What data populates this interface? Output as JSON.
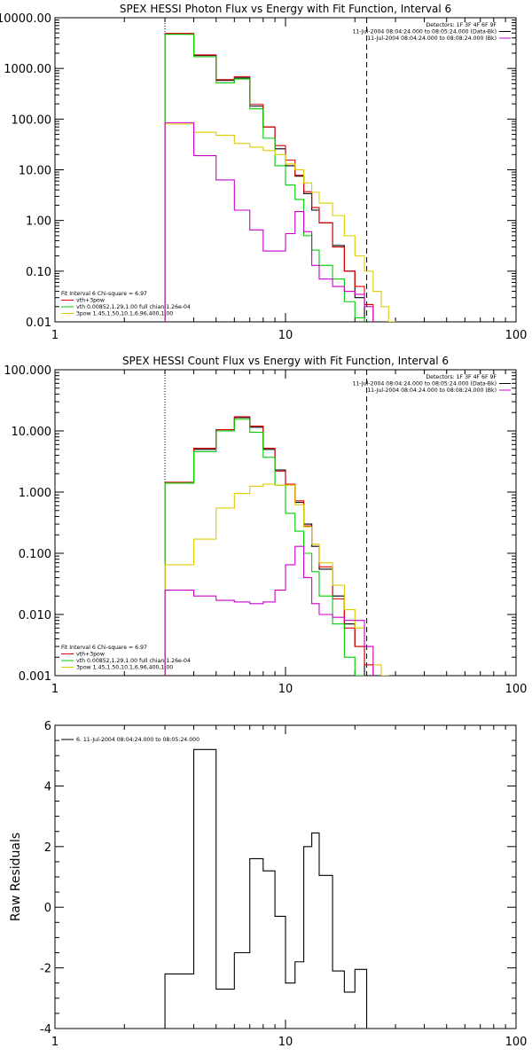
{
  "chart_data": [
    {
      "type": "line",
      "title": "SPEX HESSI Photon Flux vs Energy with Fit Function, Interval 6",
      "xscale": "log",
      "yscale": "log",
      "xlim": [
        1,
        100
      ],
      "ylim": [
        0.01,
        10000
      ],
      "xticks": [
        1,
        10,
        100
      ],
      "xtick_labels": [
        "1",
        "10",
        "100"
      ],
      "yticks": [
        0.01,
        0.1,
        1,
        10,
        100,
        1000,
        10000
      ],
      "ytick_labels": [
        "0.01",
        "0.10",
        "1.00",
        "10.00",
        "100.00",
        "1000.00",
        "10000.00"
      ],
      "header_lines": [
        "Detectors: 1F 3F 4F 6F 9F",
        "11-Jul-2004 08:04:24.000 to 08:05:24.000 (Data-Bk)",
        "11-Jul-2004 08:04:24.000 to 08:08:24.000 (Bk)"
      ],
      "header_colors": [
        "",
        "#000000",
        "#cc00cc"
      ],
      "legend_title": "Fit Interval 6   Chi-square = 6.97",
      "fit_range": [
        3,
        22.5
      ],
      "edges": [
        3,
        4,
        5,
        6,
        7,
        8,
        9,
        10,
        11,
        12,
        13,
        14,
        16,
        18,
        20,
        22,
        24,
        26,
        28,
        30
      ],
      "series": [
        {
          "name": "Data-Bk",
          "color": "#000000",
          "values": [
            4800,
            1800,
            580,
            650,
            180,
            70,
            26,
            12,
            7.5,
            3.4,
            1.6,
            0.9,
            0.32,
            0.1,
            0.03
          ]
        },
        {
          "name": "vth+3pow",
          "color": "#dd0000",
          "values": [
            4900,
            1850,
            600,
            690,
            195,
            70,
            30,
            15.5,
            7.8,
            3.7,
            1.8,
            0.9,
            0.3,
            0.1,
            0.05,
            0.022
          ]
        },
        {
          "name": "vth 0.00852,1.29,1.00  full chian 1.26e-04",
          "color": "#00cc00",
          "values": [
            4700,
            1700,
            520,
            620,
            160,
            42,
            12,
            5,
            2.6,
            0.5,
            0.26,
            0.13,
            0.07,
            0.025,
            0.012
          ]
        },
        {
          "name": "3pow 1.45,1.50,10.1,6.96,400,1.00",
          "color": "#ddcc00",
          "values": [
            80,
            55,
            48,
            33,
            28,
            24,
            20,
            13,
            10,
            5.5,
            3.6,
            2.2,
            1.25,
            0.5,
            0.2,
            0.1,
            0.04,
            0.02,
            0.01
          ]
        },
        {
          "name": "Bk",
          "color": "#cc00cc",
          "values": [
            85,
            19,
            6.3,
            1.6,
            0.65,
            0.25,
            0.25,
            0.55,
            1.5,
            0.6,
            0.13,
            0.07,
            0.05,
            0.04,
            0.035,
            0.02
          ]
        }
      ]
    },
    {
      "type": "line",
      "title": "SPEX HESSI Count Flux vs Energy with Fit Function, Interval 6",
      "xscale": "log",
      "yscale": "log",
      "xlim": [
        1,
        100
      ],
      "ylim": [
        0.001,
        100
      ],
      "xticks": [
        1,
        10,
        100
      ],
      "xtick_labels": [
        "1",
        "10",
        "100"
      ],
      "yticks": [
        0.001,
        0.01,
        0.1,
        1,
        10,
        100
      ],
      "ytick_labels": [
        "0.001",
        "0.010",
        "0.100",
        "1.000",
        "10.000",
        "100.000"
      ],
      "header_lines": [
        "Detectors: 1F 3F 4F 6F 9F",
        "11-Jul-2004 08:04:24.000 to 08:05:24.000 (Data-Bk)",
        "11-Jul-2004 08:04:24.000 to 08:08:24.000 (Bk)"
      ],
      "header_colors": [
        "",
        "#000000",
        "#cc00cc"
      ],
      "legend_title": "Fit Interval 6   Chi-square = 6.97",
      "fit_range": [
        3,
        22.5
      ],
      "edges": [
        3,
        4,
        5,
        6,
        7,
        8,
        9,
        10,
        11,
        12,
        13,
        14,
        16,
        18,
        20,
        22,
        24,
        26,
        28,
        30
      ],
      "series": [
        {
          "name": "Data-Bk",
          "color": "#000000",
          "values": [
            1.4,
            5.0,
            10.5,
            16.5,
            11.5,
            5.0,
            2.3,
            1.35,
            0.68,
            0.3,
            0.13,
            0.055,
            0.02,
            0.007,
            0.003
          ]
        },
        {
          "name": "vth+3pow",
          "color": "#dd0000",
          "values": [
            1.45,
            5.2,
            10.5,
            17.0,
            12.0,
            5.2,
            2.2,
            1.35,
            0.72,
            0.28,
            0.14,
            0.06,
            0.018,
            0.006,
            0.003,
            0.0015
          ]
        },
        {
          "name": "vth 0.00852,1.29,1.00  full chian 1.26e-04",
          "color": "#00cc00",
          "values": [
            1.4,
            4.6,
            10.0,
            15.5,
            9.5,
            3.7,
            1.3,
            0.45,
            0.23,
            0.1,
            0.05,
            0.02,
            0.007,
            0.002,
            0.001
          ]
        },
        {
          "name": "3pow 1.45,1.50,10.1,6.96,400,1.00",
          "color": "#ddcc00",
          "values": [
            0.065,
            0.17,
            0.55,
            0.95,
            1.25,
            1.35,
            1.3,
            1.3,
            0.62,
            0.27,
            0.14,
            0.07,
            0.03,
            0.012,
            0.006,
            0.003,
            0.0015,
            0.001
          ]
        },
        {
          "name": "Bk",
          "color": "#cc00cc",
          "values": [
            0.025,
            0.02,
            0.017,
            0.016,
            0.015,
            0.016,
            0.025,
            0.065,
            0.13,
            0.04,
            0.015,
            0.01,
            0.009,
            0.008,
            0.008,
            0.003
          ]
        }
      ]
    },
    {
      "type": "line",
      "title": "",
      "xscale": "log",
      "yscale": "linear",
      "xlim": [
        1,
        100
      ],
      "ylim": [
        -4,
        6
      ],
      "xticks": [
        1,
        10,
        100
      ],
      "xtick_labels": [
        "1",
        "10",
        "100"
      ],
      "yticks": [
        -4,
        -2,
        0,
        2,
        4,
        6
      ],
      "ytick_labels": [
        "-4",
        "-2",
        "0",
        "2",
        "4",
        "6"
      ],
      "ylabel": "Raw Residuals",
      "legend_entries": [
        {
          "name": "6. 11-Jul-2004 08:04:24.000 to 08:05:24.000",
          "color": "#000000"
        }
      ],
      "edges": [
        3,
        4,
        5,
        6,
        7,
        8,
        9,
        10,
        11,
        12,
        13,
        14,
        16,
        18,
        20,
        22.5
      ],
      "baseline": -4,
      "series": [
        {
          "name": "6. 11-Jul-2004 08:04:24.000 to 08:05:24.000",
          "color": "#000000",
          "values": [
            -2.2,
            5.2,
            -2.7,
            -1.5,
            1.6,
            1.2,
            -0.3,
            -2.5,
            -1.8,
            2.0,
            2.45,
            1.05,
            -2.1,
            -2.8,
            -2.05
          ]
        }
      ]
    }
  ]
}
